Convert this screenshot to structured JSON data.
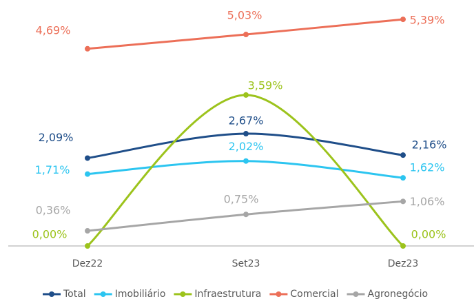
{
  "chart_data": {
    "type": "line",
    "smooth": true,
    "categories": [
      "Dez22",
      "Set23",
      "Dez23"
    ],
    "ylim": [
      0,
      5.85
    ],
    "legend": "bottom",
    "series": [
      {
        "name": "Total",
        "color": "#1f4e89",
        "values": [
          2.09,
          2.67,
          2.16
        ],
        "value_labels": [
          "2,09%",
          "2,67%",
          "2,16%"
        ]
      },
      {
        "name": "Imobiliário",
        "color": "#2cc5f0",
        "values": [
          1.71,
          2.02,
          1.62
        ],
        "value_labels": [
          "1,71%",
          "2,02%",
          "1,62%"
        ]
      },
      {
        "name": "Infraestrutura",
        "color": "#9cc31c",
        "values": [
          0.0,
          3.59,
          0.0
        ],
        "value_labels": [
          "0,00%",
          "3,59%",
          "0,00%"
        ]
      },
      {
        "name": "Comercial",
        "color": "#ec6f58",
        "values": [
          4.69,
          5.03,
          5.39
        ],
        "value_labels": [
          "4,69%",
          "5,03%",
          "5,39%"
        ]
      },
      {
        "name": "Agronegócio",
        "color": "#a6a6a6",
        "values": [
          0.36,
          0.75,
          1.06
        ],
        "value_labels": [
          "0,36%",
          "0,75%",
          "1,06%"
        ]
      }
    ]
  }
}
